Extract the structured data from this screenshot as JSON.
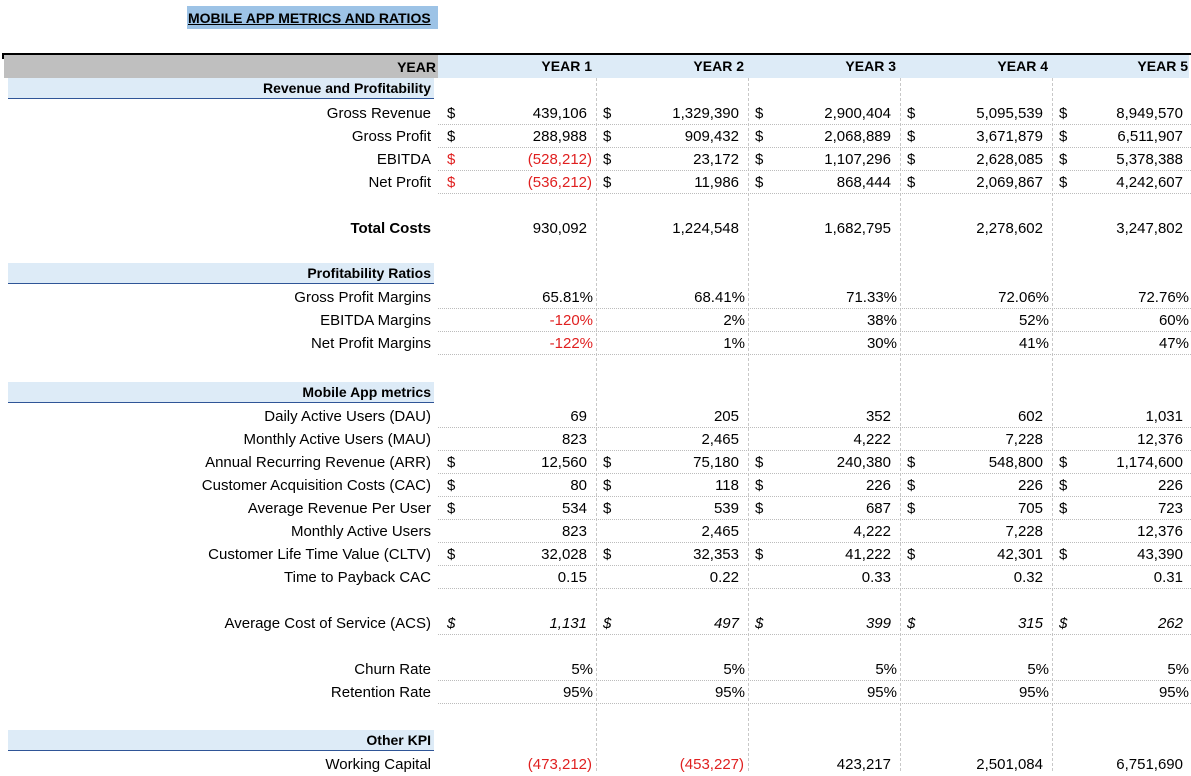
{
  "title": "MOBILE APP METRICS AND RATIOS",
  "header": {
    "year_label": "YEAR",
    "years": [
      "YEAR 1",
      "YEAR 2",
      "YEAR 3",
      "YEAR 4",
      "YEAR 5"
    ]
  },
  "sections": {
    "revenue": "Revenue and Profitability",
    "ratios": "Profitability Ratios",
    "metrics": "Mobile App metrics",
    "other": "Other KPI"
  },
  "rows": [
    {
      "label": "Gross Revenue",
      "cur": "$",
      "values": [
        "439,106",
        "1,329,390",
        "2,900,404",
        "5,095,539",
        "8,949,570"
      ]
    },
    {
      "label": "Gross Profit",
      "cur": "$",
      "values": [
        "288,988",
        "909,432",
        "2,068,889",
        "3,671,879",
        "6,511,907"
      ]
    },
    {
      "label": "EBITDA",
      "cur": "$",
      "values": [
        "(528,212)",
        "23,172",
        "1,107,296",
        "2,628,085",
        "5,378,388"
      ]
    },
    {
      "label": "Net Profit",
      "cur": "$",
      "values": [
        "(536,212)",
        "11,986",
        "868,444",
        "2,069,867",
        "4,242,607"
      ]
    },
    {
      "label": "Total Costs",
      "values": [
        "930,092",
        "1,224,548",
        "1,682,795",
        "2,278,602",
        "3,247,802"
      ]
    },
    {
      "label": "Gross Profit Margins",
      "values": [
        "65.81%",
        "68.41%",
        "71.33%",
        "72.06%",
        "72.76%"
      ]
    },
    {
      "label": "EBITDA Margins",
      "values": [
        "-120%",
        "2%",
        "38%",
        "52%",
        "60%"
      ]
    },
    {
      "label": "Net Profit Margins",
      "values": [
        "-122%",
        "1%",
        "30%",
        "41%",
        "47%"
      ]
    },
    {
      "label": "Daily Active Users (DAU)",
      "values": [
        "69",
        "205",
        "352",
        "602",
        "1,031"
      ]
    },
    {
      "label": "Monthly Active Users (MAU)",
      "values": [
        "823",
        "2,465",
        "4,222",
        "7,228",
        "12,376"
      ]
    },
    {
      "label": "Annual Recurring Revenue (ARR)",
      "cur": "$",
      "values": [
        "12,560",
        "75,180",
        "240,380",
        "548,800",
        "1,174,600"
      ]
    },
    {
      "label": "Customer Acquisition Costs (CAC)",
      "cur": "$",
      "values": [
        "80",
        "118",
        "226",
        "226",
        "226"
      ]
    },
    {
      "label": "Average Revenue Per User",
      "cur": "$",
      "values": [
        "534",
        "539",
        "687",
        "705",
        "723"
      ]
    },
    {
      "label": "Monthly Active Users",
      "values": [
        "823",
        "2,465",
        "4,222",
        "7,228",
        "12,376"
      ]
    },
    {
      "label": "Customer Life Time Value (CLTV)",
      "cur": "$",
      "values": [
        "32,028",
        "32,353",
        "41,222",
        "42,301",
        "43,390"
      ]
    },
    {
      "label": "Time to Payback CAC",
      "values": [
        "0.15",
        "0.22",
        "0.33",
        "0.32",
        "0.31"
      ]
    },
    {
      "label": "Average Cost of Service (ACS)",
      "cur": "$",
      "values": [
        "1,131",
        "497",
        "399",
        "315",
        "262"
      ]
    },
    {
      "label": "Churn Rate",
      "values": [
        "5%",
        "5%",
        "5%",
        "5%",
        "5%"
      ]
    },
    {
      "label": "Retention Rate",
      "values": [
        "95%",
        "95%",
        "95%",
        "95%",
        "95%"
      ]
    },
    {
      "label": "Working Capital",
      "values": [
        "(473,212)",
        "(453,227)",
        "423,217",
        "2,501,084",
        "6,751,690"
      ]
    }
  ],
  "colors": {
    "negative": "#e02020",
    "section_band": "#ddebf7",
    "title_band": "#9dc3e6",
    "year_label_band": "#bfbfbf"
  }
}
